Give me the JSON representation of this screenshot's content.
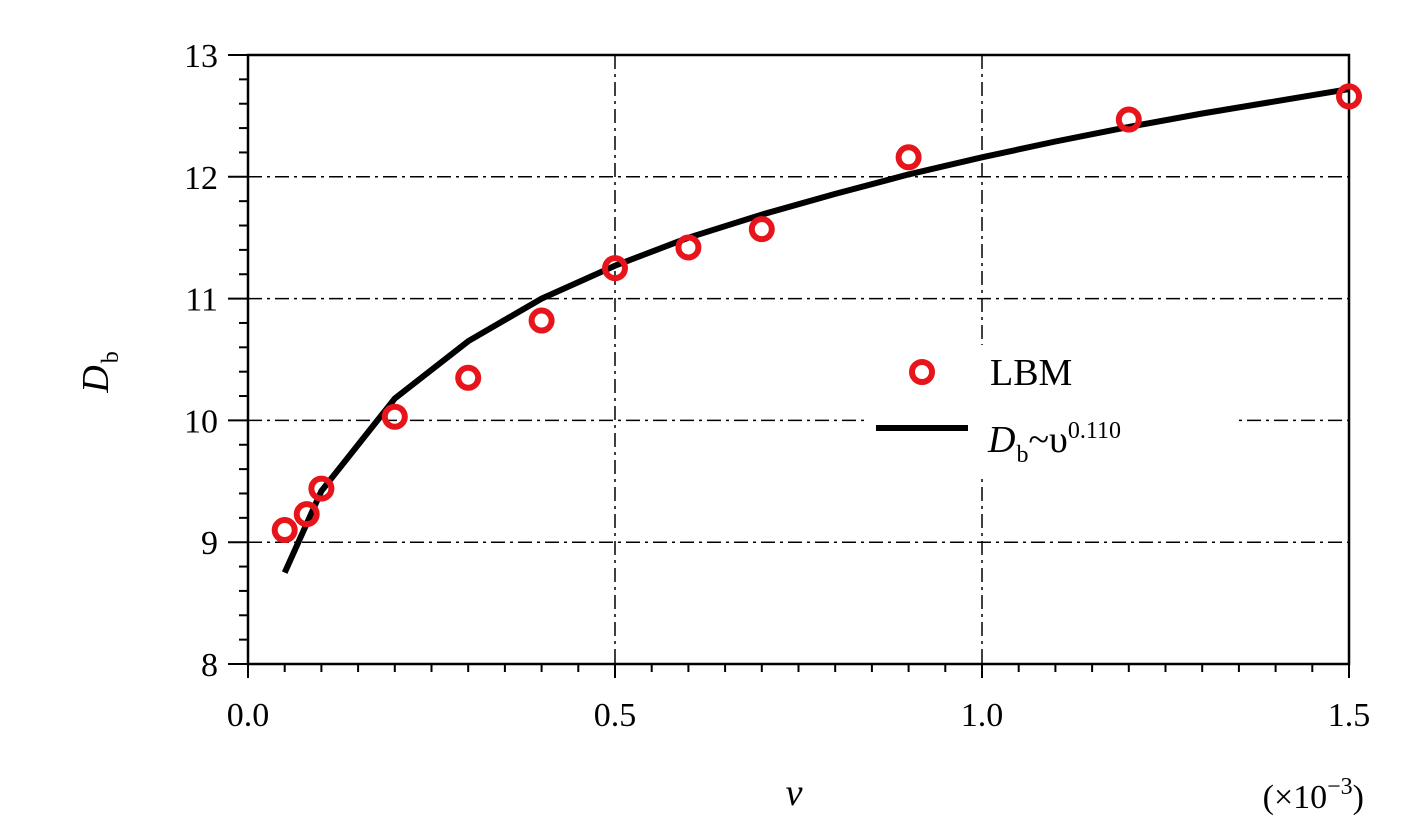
{
  "chart_data": {
    "type": "scatter",
    "title": "",
    "xlabel": "v",
    "x_multiplier": "(×10−3)",
    "x_multiplier_parts": {
      "open": "(×10",
      "exp": "−3",
      "close": ")"
    },
    "ylabel": "D",
    "ylabel_sub": "b",
    "xlim": [
      0,
      1.5
    ],
    "ylim": [
      8,
      13
    ],
    "xticks": [
      "0.0",
      "0.5",
      "1.0",
      "1.5"
    ],
    "yticks": [
      "8",
      "9",
      "10",
      "11",
      "12",
      "13"
    ],
    "grid": "dash-dot",
    "legend_position": "right",
    "series": [
      {
        "name": "LBM",
        "kind": "markers",
        "color": "#e8141c",
        "x": [
          0.05,
          0.08,
          0.1,
          0.2,
          0.3,
          0.4,
          0.5,
          0.6,
          0.7,
          0.9,
          1.2,
          1.5
        ],
        "y": [
          9.1,
          9.23,
          9.44,
          10.03,
          10.35,
          10.82,
          11.25,
          11.42,
          11.57,
          12.16,
          12.47,
          12.66
        ]
      },
      {
        "name": "D",
        "name_sub": "b",
        "name_rest": "~υ",
        "name_sup": "0.110",
        "kind": "line",
        "color": "#000000",
        "x": [
          0.05,
          0.1,
          0.2,
          0.3,
          0.4,
          0.5,
          0.6,
          0.7,
          0.8,
          0.9,
          1.0,
          1.1,
          1.2,
          1.3,
          1.4,
          1.5
        ],
        "y": [
          8.75,
          9.42,
          10.18,
          10.65,
          11.0,
          11.27,
          11.5,
          11.69,
          11.86,
          12.02,
          12.16,
          12.29,
          12.41,
          12.52,
          12.62,
          12.72
        ]
      }
    ]
  }
}
